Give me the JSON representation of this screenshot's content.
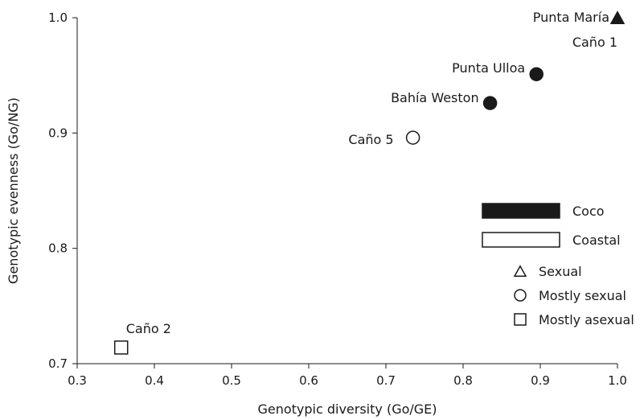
{
  "chart_data": {
    "type": "scatter",
    "title": "",
    "xlabel": "Genotypic diversity (Go/GE)",
    "ylabel": "Genotypic evenness (Go/NG)",
    "xlim": [
      0.3,
      1.0
    ],
    "ylim": [
      0.7,
      1.0
    ],
    "xticks": [
      0.3,
      0.4,
      0.5,
      0.6,
      0.7,
      0.8,
      0.9,
      1.0
    ],
    "yticks": [
      0.7,
      0.8,
      0.9,
      1.0
    ],
    "xtick_labels": [
      "0.3",
      "0.4",
      "0.5",
      "0.6",
      "0.7",
      "0.8",
      "0.9",
      "1.0"
    ],
    "ytick_labels": [
      "0.7",
      "0.8",
      "0.9",
      "1.0"
    ],
    "grid": false,
    "legend_placement": "right",
    "points": [
      {
        "label": "Punta María",
        "x": 1.0,
        "y": 1.0,
        "shape": "triangle",
        "filled": true
      },
      {
        "label": "Caño 1",
        "x": 1.0,
        "y": 1.0,
        "shape": "triangle",
        "filled": false
      },
      {
        "label": "Punta Ulloa",
        "x": 0.895,
        "y": 0.951,
        "shape": "circle",
        "filled": true
      },
      {
        "label": "Bahía Weston",
        "x": 0.835,
        "y": 0.926,
        "shape": "circle",
        "filled": true
      },
      {
        "label": "Caño 5",
        "x": 0.735,
        "y": 0.896,
        "shape": "circle",
        "filled": false
      },
      {
        "label": "Caño 2",
        "x": 0.357,
        "y": 0.714,
        "shape": "square",
        "filled": false
      }
    ],
    "legend": {
      "fill": [
        {
          "label": "Coco",
          "filled": true
        },
        {
          "label": "Coastal",
          "filled": false
        }
      ],
      "shape": [
        {
          "label": "Sexual",
          "shape": "triangle"
        },
        {
          "label": "Mostly sexual",
          "shape": "circle"
        },
        {
          "label": "Mostly asexual",
          "shape": "square"
        }
      ]
    },
    "colors": {
      "ink": "#1a1a1a",
      "background": "#ffffff"
    }
  }
}
